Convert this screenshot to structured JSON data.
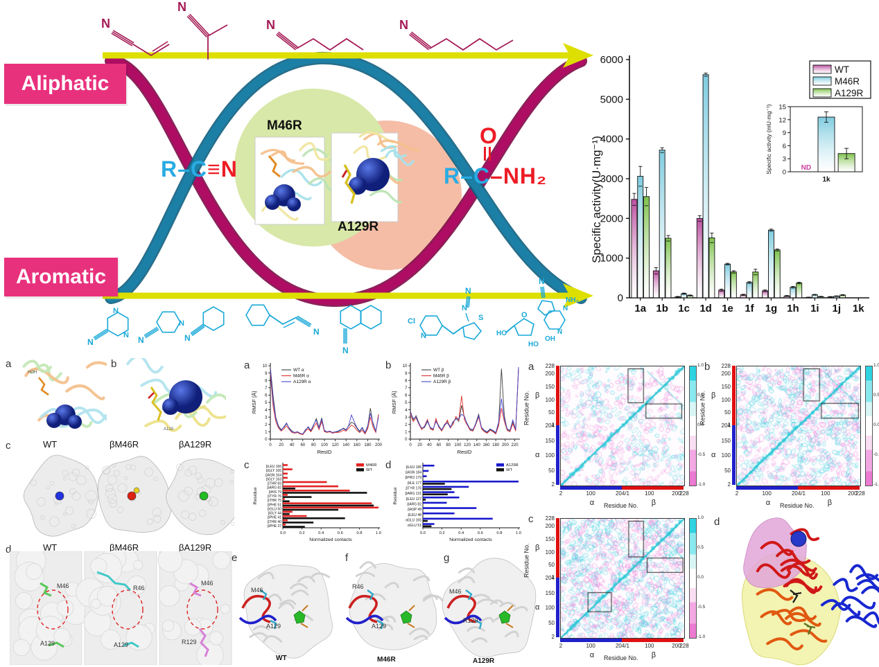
{
  "abstract": {
    "aliphatic": "Aliphatic",
    "aromatic": "Aromatic",
    "mutant_top": "M46R",
    "mutant_bottom": "A129R",
    "substrate": {
      "r": "R",
      "bond1": "–",
      "c": "C",
      "triple": "≡",
      "n": "N"
    },
    "product": {
      "o": "O",
      "r": "R",
      "bond1": "–",
      "c": "C",
      "bond2": "–",
      "nh2": "NH₂"
    },
    "colors": {
      "pink_box": "#e8317d",
      "helix_teal": "#1c7fa6",
      "helix_magenta": "#ae0d63",
      "arrow_yellow": "#dddf00",
      "aliphatic_struct": "#a41a55",
      "aromatic_struct": "#19a8d8",
      "circle_green": "#d8e8a8",
      "circle_salmon": "#f5bda6",
      "formula_cyan": "#29abe2",
      "formula_red": "#ed1c24"
    },
    "structures_top": {
      "atoms": [
        "N",
        "N",
        "N",
        "N"
      ]
    },
    "structures_bottom": {
      "items": [
        {
          "atoms": [
            "N",
            "N",
            "N"
          ]
        },
        {
          "atoms": [
            "N",
            "N"
          ]
        },
        {
          "atoms": [
            "N"
          ]
        },
        {
          "atoms": [
            "N"
          ]
        },
        {
          "atoms": [
            "N"
          ]
        },
        {
          "atoms": [
            "Cl",
            "N",
            "N",
            "S",
            "N"
          ]
        },
        {
          "atoms": [
            "N",
            "NH₂",
            "N",
            "N",
            "O",
            "HO",
            "OH",
            "HO"
          ]
        }
      ]
    }
  },
  "left_panels": {
    "a_label": "a",
    "b_label": "b",
    "c_label": "c",
    "d_label": "d",
    "a_sub": "HOH",
    "b_sub": "A129",
    "c_titles": [
      "WT",
      "βM46R",
      "βA129R"
    ],
    "d_titles": [
      "WT",
      "βM46R",
      "βA129R"
    ],
    "d_residues": [
      [
        "M46",
        "A129"
      ],
      [
        "R46",
        "A129"
      ],
      [
        "M46",
        "R129"
      ]
    ]
  },
  "md_panels": {
    "a_label": "a",
    "b_label": "b",
    "c_label": "c",
    "d_label": "d",
    "e_label": "e",
    "f_label": "f",
    "g_label": "g",
    "efg_titles": [
      "WT",
      "M46R",
      "A129R"
    ],
    "efg_residues": [
      [
        "M46",
        "A129"
      ],
      [
        "R46",
        "A129"
      ],
      [
        "M46",
        "R129"
      ]
    ]
  },
  "maps": {
    "a_label": "a",
    "b_label": "b",
    "c_label": "c",
    "d_label": "d",
    "ylabel": "Residue No.",
    "xlabel": "Residue No.",
    "alpha": "α",
    "beta": "β",
    "yticks_beta": [
      "228",
      "200",
      "150",
      "100",
      "50",
      "1"
    ],
    "yticks_alpha": [
      "204",
      "150",
      "100",
      "50",
      "2"
    ],
    "xticks": [
      "2",
      "100",
      "204/1",
      "100",
      "200",
      "228"
    ],
    "colorbar_ticks": [
      "1.0",
      "0.5",
      "0.0",
      "-0.5",
      "-1.0"
    ]
  },
  "chart_data": [
    {
      "id": "activity",
      "type": "bar",
      "ylabel": "Specific activity(U·mg⁻¹)",
      "categories": [
        "1a",
        "1b",
        "1c",
        "1d",
        "1e",
        "1f",
        "1g",
        "1h",
        "1i",
        "1j",
        "1k"
      ],
      "series": [
        {
          "name": "WT",
          "color": "#bb4fa0",
          "values": [
            2480,
            680,
            25,
            2000,
            195,
            75,
            178,
            47,
            12,
            24,
            0
          ],
          "errors": [
            150,
            80,
            10,
            70,
            25,
            15,
            20,
            12,
            6,
            8,
            0
          ]
        },
        {
          "name": "M46R",
          "color": "#7fccdf",
          "values": [
            3060,
            3720,
            105,
            5620,
            850,
            386,
            1705,
            267,
            77,
            42,
            0
          ],
          "errors": [
            250,
            60,
            15,
            40,
            20,
            20,
            25,
            20,
            10,
            8,
            0
          ]
        },
        {
          "name": "A129R",
          "color": "#7dc24b",
          "values": [
            2550,
            1500,
            60,
            1510,
            653,
            650,
            1206,
            374,
            30,
            70,
            0
          ],
          "errors": [
            230,
            70,
            12,
            120,
            30,
            70,
            25,
            20,
            8,
            10,
            0
          ]
        }
      ],
      "ylim": [
        0,
        6000
      ],
      "yticks": [
        0,
        1000,
        2000,
        3000,
        4000,
        5000,
        6000
      ],
      "legend_position": "top-right"
    },
    {
      "id": "activity-inset",
      "type": "bar",
      "ylabel": "Specific activity (mU·mg⁻¹)",
      "categories": [
        "1k"
      ],
      "series": [
        {
          "name": "WT",
          "color": "#bb4fa0",
          "values": [
            0
          ],
          "errors": [
            0
          ],
          "note": "ND"
        },
        {
          "name": "M46R",
          "color": "#7fccdf",
          "values": [
            12.6
          ],
          "errors": [
            1.2
          ]
        },
        {
          "name": "A129R",
          "color": "#7dc24b",
          "values": [
            4.2
          ],
          "errors": [
            1.2
          ]
        }
      ],
      "ylim": [
        0,
        15
      ],
      "yticks": [
        0,
        3,
        6,
        9,
        12,
        15
      ],
      "nd_label": "ND",
      "nd_color": "#cc3f9f"
    },
    {
      "id": "rmsf-alpha",
      "type": "line",
      "xlabel": "ResID",
      "ylabel": "RMSF [Å]",
      "xlim": [
        0,
        200
      ],
      "ylim": [
        0,
        10
      ],
      "xtick_step": 20,
      "ytick_step": 1,
      "x_step": 5,
      "series": [
        {
          "name": "WT α",
          "color": "#404040",
          "y": [
            9.8,
            6.0,
            3.0,
            1.8,
            1.3,
            1.6,
            2.1,
            1.5,
            1.1,
            0.9,
            1.0,
            0.8,
            0.7,
            1.3,
            1.6,
            1.1,
            1.9,
            2.8,
            1.6,
            2.9,
            1.1,
            1.0,
            1.1,
            0.9,
            1.0,
            1.0,
            1.2,
            1.5,
            1.3,
            1.8,
            2.3,
            2.1,
            1.5,
            1.0,
            1.5,
            0.8,
            1.7,
            4.2,
            2.0,
            1.0,
            3.3
          ]
        },
        {
          "name": "M46R α",
          "color": "#e03030",
          "y": [
            9.0,
            4.5,
            2.4,
            1.5,
            1.1,
            1.4,
            1.8,
            1.3,
            0.9,
            0.8,
            0.9,
            0.7,
            0.6,
            1.1,
            1.4,
            1.0,
            1.6,
            2.2,
            1.3,
            2.4,
            1.0,
            0.9,
            1.0,
            0.8,
            0.9,
            0.9,
            1.0,
            1.2,
            1.1,
            1.5,
            1.9,
            1.7,
            1.2,
            0.9,
            1.2,
            0.7,
            1.4,
            3.0,
            1.6,
            0.9,
            3.4
          ]
        },
        {
          "name": "A129R α",
          "color": "#4444cc",
          "y": [
            9.5,
            5.2,
            2.8,
            1.7,
            1.2,
            1.7,
            2.2,
            1.4,
            1.0,
            0.9,
            1.0,
            0.8,
            0.7,
            1.2,
            1.7,
            1.2,
            2.0,
            2.6,
            1.5,
            2.7,
            1.2,
            1.0,
            1.1,
            0.9,
            1.0,
            1.1,
            1.3,
            1.4,
            1.2,
            1.9,
            3.3,
            2.4,
            1.6,
            1.1,
            1.6,
            0.9,
            1.8,
            3.5,
            2.2,
            1.1,
            3.0
          ]
        }
      ]
    },
    {
      "id": "rmsf-beta",
      "type": "line",
      "xlabel": "ResID",
      "ylabel": "RMSF [Å]",
      "xlim": [
        0,
        228
      ],
      "ylim": [
        0,
        10
      ],
      "xtick_step": 20,
      "ytick_step": 1,
      "x_step": 6,
      "series": [
        {
          "name": "WT β",
          "color": "#404040",
          "y": [
            3.8,
            2.6,
            3.2,
            2.2,
            1.4,
            1.6,
            2.4,
            1.5,
            1.3,
            2.6,
            1.8,
            1.2,
            2.0,
            2.4,
            1.7,
            2.2,
            2.9,
            2.4,
            4.6,
            2.9,
            2.1,
            1.3,
            1.2,
            2.2,
            3.4,
            1.5,
            1.1,
            0.9,
            1.3,
            1.1,
            0.8,
            2.1,
            9.6,
            3.2,
            1.3,
            1.1,
            2.4,
            1.2,
            9.8
          ]
        },
        {
          "name": "M46R β",
          "color": "#e03030",
          "y": [
            3.4,
            2.4,
            2.9,
            2.0,
            1.3,
            1.8,
            2.7,
            1.4,
            1.2,
            2.8,
            1.6,
            1.1,
            1.8,
            2.6,
            1.5,
            2.0,
            3.1,
            2.6,
            5.9,
            2.6,
            1.9,
            1.2,
            1.1,
            2.0,
            3.0,
            1.4,
            1.0,
            0.8,
            1.2,
            1.0,
            0.7,
            1.8,
            4.2,
            2.4,
            1.2,
            1.0,
            2.1,
            1.1,
            9.4
          ]
        },
        {
          "name": "A129R β",
          "color": "#4444cc",
          "y": [
            3.6,
            2.8,
            3.0,
            2.1,
            1.5,
            1.7,
            2.5,
            1.6,
            1.4,
            2.4,
            1.7,
            1.3,
            1.9,
            2.2,
            1.6,
            2.4,
            2.7,
            2.8,
            3.4,
            3.1,
            2.0,
            1.4,
            1.3,
            2.1,
            3.2,
            1.6,
            1.2,
            1.0,
            1.4,
            1.2,
            0.9,
            2.3,
            5.5,
            2.8,
            1.4,
            1.2,
            2.6,
            1.3,
            9.8
          ]
        }
      ]
    },
    {
      "id": "contacts-m46r",
      "type": "hbar",
      "xlabel": "Normalized contacts",
      "ylabel": "Residue",
      "categories_top_to_bottom": [
        "βLEU 166",
        "βGLY 165",
        "βASN 164",
        "βGLY 163",
        "βTHR 83",
        "βARG 82",
        "βHIS 79",
        "βTYR 76",
        "βTHR 75",
        "βPHE 51",
        "βGLU 50",
        "βGLY 44",
        "βPHE 41",
        "βTHR 40",
        "βPHE 37"
      ],
      "series": [
        {
          "name": "M46R",
          "color": "#e32222",
          "values": [
            0.05,
            0.1,
            0.05,
            0.05,
            0.46,
            0.58,
            0.7,
            0.05,
            0.02,
            0.93,
            1.0,
            0.1,
            0.25,
            0.05,
            0.03
          ]
        },
        {
          "name": "WT",
          "color": "#111111",
          "values": [
            0,
            0,
            0,
            0,
            0,
            0.13,
            0.88,
            0.3,
            0.07,
            0.95,
            0.58,
            0.07,
            0.65,
            0.32,
            0.23
          ]
        }
      ],
      "xlim": [
        0,
        1.0
      ],
      "xticks": [
        "0.0",
        "0.2",
        "0.4",
        "0.6",
        "0.8",
        "1.0"
      ]
    },
    {
      "id": "contacts-a129r",
      "type": "hbar",
      "xlabel": "Normalized contacts",
      "ylabel": "Residue",
      "categories_top_to_bottom": [
        "βLEU 186",
        "βASN 184",
        "βPRO 179",
        "βILE 177",
        "βTYR 176",
        "βARG 131",
        "βLEU 127",
        "βARG 82",
        "βASP 49",
        "βLEU 48",
        "αGLU 165",
        "αGLU 51"
      ],
      "series": [
        {
          "name": "A129R",
          "color": "#1818cc",
          "values": [
            0.12,
            0.06,
            0.04,
            1.0,
            0.48,
            0.33,
            0.38,
            0.25,
            0.56,
            0.33,
            0.73,
            0.12
          ]
        },
        {
          "name": "WT",
          "color": "#111111",
          "values": [
            0,
            0,
            0,
            0.23,
            0.3,
            0.26,
            0.03,
            0,
            0,
            0,
            0.05,
            0.09
          ]
        }
      ],
      "xlim": [
        0,
        1.0
      ],
      "xticks": [
        "0.0",
        "0.2",
        "0.4",
        "0.6",
        "0.8",
        "1.0"
      ]
    },
    {
      "id": "dccm-maps",
      "type": "heatmap",
      "panels": [
        "a",
        "b",
        "c"
      ],
      "xlabel": "Residue No.",
      "ylabel": "Residue No.",
      "subunits": [
        "α",
        "β"
      ],
      "xticks": [
        "2",
        "100",
        "204/1",
        "100",
        "200",
        "228"
      ],
      "yticks_beta": [
        "228",
        "200",
        "150",
        "100",
        "50",
        "1"
      ],
      "yticks_alpha": [
        "204",
        "150",
        "100",
        "50",
        "2"
      ],
      "colorbar_ticks": [
        "1.0",
        "0.5",
        "0.0",
        "-0.5",
        "-1.0"
      ],
      "colors": {
        "positive": "#3ed3e2",
        "negative": "#ef86dc"
      }
    }
  ]
}
